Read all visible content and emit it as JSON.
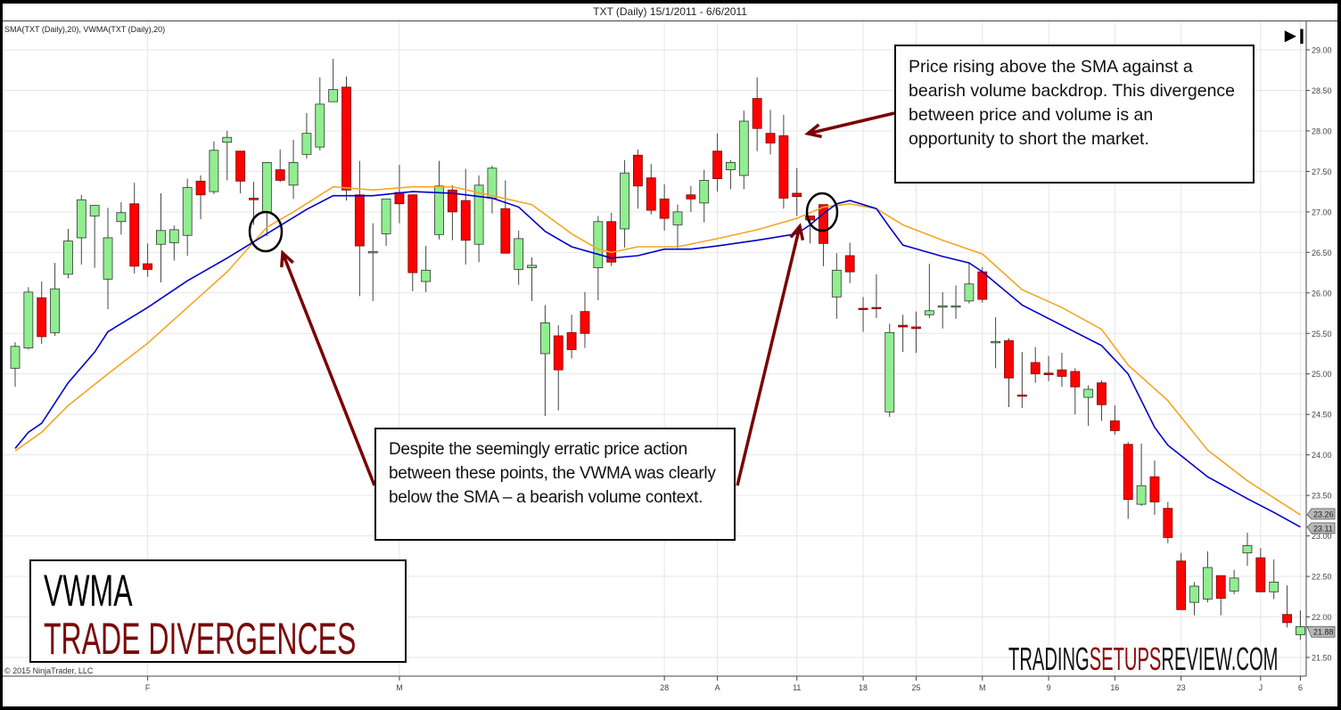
{
  "header": {
    "title": "TXT (Daily)  15/1/2011 - 6/6/2011",
    "indicator_label": "SMA(TXT (Daily),20), VWMA(TXT (Daily),20)",
    "skip_icon": "skip-to-end-icon"
  },
  "copyright": "© 2015 NinjaTrader, LLC",
  "annotations": {
    "note1": "Price rising above the SMA against a bearish volume backdrop. This divergence between price and volume is an opportunity to short the market.",
    "note2": "Despite the seemingly erratic price action between these points, the VWMA was clearly below the SMA – a bearish volume context."
  },
  "title_box": {
    "line1": "VWMA",
    "line2": "TRADE DIVERGENCES"
  },
  "logo": {
    "part1": "TRADING",
    "part2": "SETUPS",
    "part3": "REVIEW.COM"
  },
  "colors": {
    "up": "#90ee90",
    "down": "#ff0000",
    "sma": "#f5a623",
    "vwma": "#0000cc",
    "arrow": "#7a0000",
    "grid": "#e6e6e6"
  },
  "chart_data": {
    "type": "candlestick",
    "title": "TXT (Daily)  15/1/2011 - 6/6/2011",
    "ylim": [
      21.4,
      29.2
    ],
    "yticks": [
      "29.00",
      "28.50",
      "28.00",
      "27.50",
      "27.00",
      "26.50",
      "26.00",
      "25.50",
      "25.00",
      "24.50",
      "24.00",
      "23.50",
      "23.00",
      "22.50",
      "22.00",
      "21.50"
    ],
    "xticks": [
      {
        "label": "F",
        "bar": 10
      },
      {
        "label": "M",
        "bar": 29
      },
      {
        "label": "28",
        "bar": 49
      },
      {
        "label": "A",
        "bar": 53
      },
      {
        "label": "11",
        "bar": 59
      },
      {
        "label": "18",
        "bar": 64
      },
      {
        "label": "25",
        "bar": 68
      },
      {
        "label": "M",
        "bar": 73
      },
      {
        "label": "9",
        "bar": 78
      },
      {
        "label": "16",
        "bar": 83
      },
      {
        "label": "23",
        "bar": 88
      },
      {
        "label": "J",
        "bar": 94
      },
      {
        "label": "6",
        "bar": 97
      }
    ],
    "ohlc": [
      [
        25.07,
        25.39,
        24.84,
        25.34
      ],
      [
        25.32,
        26.07,
        25.3,
        26.01
      ],
      [
        25.94,
        26.14,
        25.37,
        25.46
      ],
      [
        25.51,
        26.37,
        25.47,
        26.05
      ],
      [
        26.23,
        26.79,
        26.18,
        26.64
      ],
      [
        26.68,
        27.21,
        26.35,
        27.15
      ],
      [
        26.95,
        27.08,
        26.31,
        27.08
      ],
      [
        26.17,
        27.05,
        25.8,
        26.68
      ],
      [
        26.88,
        27.12,
        26.72,
        26.99
      ],
      [
        27.1,
        27.36,
        26.24,
        26.33
      ],
      [
        26.36,
        26.61,
        26.2,
        26.29
      ],
      [
        26.6,
        27.23,
        26.13,
        26.77
      ],
      [
        26.62,
        26.83,
        26.4,
        26.78
      ],
      [
        26.71,
        27.41,
        26.46,
        27.3
      ],
      [
        27.38,
        27.45,
        26.91,
        27.21
      ],
      [
        27.25,
        27.87,
        27.22,
        27.76
      ],
      [
        27.86,
        28.0,
        27.39,
        27.92
      ],
      [
        27.75,
        27.75,
        27.23,
        27.38
      ],
      [
        27.17,
        27.37,
        26.84,
        27.15
      ],
      [
        27.0,
        27.61,
        26.7,
        27.61
      ],
      [
        27.52,
        27.77,
        27.37,
        27.39
      ],
      [
        27.33,
        27.89,
        27.16,
        27.61
      ],
      [
        27.71,
        28.22,
        27.66,
        27.97
      ],
      [
        27.8,
        28.66,
        27.76,
        28.33
      ],
      [
        28.36,
        28.89,
        28.36,
        28.51
      ],
      [
        28.54,
        28.67,
        27.14,
        27.27
      ],
      [
        27.21,
        27.63,
        25.96,
        26.58
      ],
      [
        26.51,
        26.86,
        25.9,
        26.51
      ],
      [
        26.73,
        27.16,
        26.58,
        27.16
      ],
      [
        27.24,
        27.58,
        26.86,
        27.1
      ],
      [
        27.21,
        27.21,
        26.02,
        26.25
      ],
      [
        26.14,
        26.58,
        26.01,
        26.28
      ],
      [
        26.72,
        27.63,
        26.66,
        27.32
      ],
      [
        27.27,
        27.33,
        26.65,
        27.0
      ],
      [
        27.14,
        27.53,
        26.35,
        26.65
      ],
      [
        26.6,
        27.45,
        26.38,
        27.33
      ],
      [
        27.17,
        27.57,
        26.98,
        27.54
      ],
      [
        27.04,
        27.39,
        26.49,
        26.49
      ],
      [
        26.29,
        26.77,
        26.1,
        26.67
      ],
      [
        26.31,
        26.44,
        25.9,
        26.34
      ],
      [
        25.25,
        25.85,
        24.48,
        25.63
      ],
      [
        25.47,
        25.6,
        24.55,
        25.05
      ],
      [
        25.51,
        25.73,
        25.19,
        25.3
      ],
      [
        25.77,
        26.01,
        25.32,
        25.5
      ],
      [
        26.31,
        26.95,
        25.91,
        26.88
      ],
      [
        26.88,
        26.99,
        26.33,
        26.38
      ],
      [
        26.79,
        27.64,
        26.56,
        27.48
      ],
      [
        27.7,
        27.77,
        27.04,
        27.32
      ],
      [
        27.42,
        27.59,
        26.97,
        27.02
      ],
      [
        27.16,
        27.34,
        26.77,
        26.92
      ],
      [
        26.84,
        27.09,
        26.55,
        27.0
      ],
      [
        27.21,
        27.32,
        27.0,
        27.16
      ],
      [
        27.11,
        27.52,
        26.87,
        27.39
      ],
      [
        27.75,
        27.97,
        27.25,
        27.41
      ],
      [
        27.52,
        27.64,
        27.28,
        27.61
      ],
      [
        27.45,
        28.25,
        27.28,
        28.12
      ],
      [
        28.4,
        28.66,
        27.75,
        28.03
      ],
      [
        27.97,
        28.26,
        27.71,
        27.85
      ],
      [
        27.94,
        28.2,
        27.04,
        27.17
      ],
      [
        27.23,
        27.54,
        26.95,
        27.19
      ],
      [
        26.95,
        26.95,
        26.61,
        26.9
      ],
      [
        27.09,
        27.09,
        26.33,
        26.61
      ],
      [
        25.95,
        26.49,
        25.68,
        26.28
      ],
      [
        26.46,
        26.62,
        26.12,
        26.26
      ],
      [
        25.81,
        25.95,
        25.52,
        25.8
      ],
      [
        25.82,
        26.23,
        25.69,
        25.81
      ],
      [
        24.53,
        25.62,
        24.47,
        25.51
      ],
      [
        25.6,
        25.73,
        25.27,
        25.58
      ],
      [
        25.58,
        25.77,
        25.26,
        25.56
      ],
      [
        25.73,
        26.36,
        25.69,
        25.78
      ],
      [
        25.84,
        26.01,
        25.56,
        25.84
      ],
      [
        25.84,
        26.09,
        25.68,
        25.84
      ],
      [
        25.9,
        26.38,
        25.87,
        26.11
      ],
      [
        26.26,
        26.32,
        25.88,
        25.92
      ],
      [
        25.4,
        25.7,
        25.07,
        25.4
      ],
      [
        25.41,
        25.44,
        24.59,
        24.95
      ],
      [
        24.74,
        25.27,
        24.58,
        24.73
      ],
      [
        25.14,
        25.33,
        24.89,
        25.0
      ],
      [
        25.01,
        25.22,
        24.91,
        24.99
      ],
      [
        25.05,
        25.26,
        24.84,
        24.97
      ],
      [
        25.03,
        25.07,
        24.5,
        24.84
      ],
      [
        24.71,
        24.86,
        24.36,
        24.81
      ],
      [
        24.89,
        24.92,
        24.42,
        24.62
      ],
      [
        24.42,
        24.61,
        24.25,
        24.3
      ],
      [
        24.13,
        24.16,
        23.21,
        23.45
      ],
      [
        23.39,
        24.14,
        23.37,
        23.62
      ],
      [
        23.73,
        23.93,
        23.26,
        23.42
      ],
      [
        23.34,
        23.42,
        22.91,
        22.98
      ],
      [
        22.69,
        22.79,
        22.09,
        22.09
      ],
      [
        22.18,
        22.43,
        22.02,
        22.38
      ],
      [
        22.22,
        22.81,
        22.18,
        22.61
      ],
      [
        22.51,
        22.51,
        22.02,
        22.23
      ],
      [
        22.32,
        22.58,
        22.28,
        22.48
      ],
      [
        22.79,
        23.04,
        22.63,
        22.88
      ],
      [
        22.73,
        22.85,
        22.31,
        22.31
      ],
      [
        22.31,
        22.71,
        22.22,
        22.43
      ],
      [
        22.03,
        22.39,
        21.87,
        21.93
      ],
      [
        21.78,
        22.08,
        21.72,
        21.88
      ]
    ],
    "series": [
      {
        "name": "SMA(TXT (Daily),20)",
        "points": [
          [
            0,
            24.05
          ],
          [
            2,
            24.28
          ],
          [
            4,
            24.61
          ],
          [
            7,
            25.0
          ],
          [
            10,
            25.38
          ],
          [
            13,
            25.82
          ],
          [
            16,
            26.26
          ],
          [
            19,
            26.81
          ],
          [
            21,
            27.0
          ],
          [
            24,
            27.31
          ],
          [
            27,
            27.27
          ],
          [
            30,
            27.31
          ],
          [
            33,
            27.31
          ],
          [
            36,
            27.2
          ],
          [
            39,
            27.09
          ],
          [
            42,
            26.73
          ],
          [
            44,
            26.54
          ],
          [
            45,
            26.5
          ],
          [
            47,
            26.57
          ],
          [
            50,
            26.57
          ],
          [
            53,
            26.67
          ],
          [
            56,
            26.78
          ],
          [
            59,
            26.92
          ],
          [
            61,
            27.06
          ],
          [
            63,
            27.1
          ],
          [
            65,
            27.04
          ],
          [
            67,
            26.84
          ],
          [
            70,
            26.65
          ],
          [
            73,
            26.48
          ],
          [
            76,
            26.04
          ],
          [
            79,
            25.82
          ],
          [
            82,
            25.55
          ],
          [
            84,
            25.11
          ],
          [
            87,
            24.67
          ],
          [
            90,
            24.06
          ],
          [
            93,
            23.68
          ],
          [
            97,
            23.26
          ]
        ]
      },
      {
        "name": "VWMA(TXT (Daily),20)",
        "points": [
          [
            0,
            24.08
          ],
          [
            1,
            24.28
          ],
          [
            2,
            24.39
          ],
          [
            4,
            24.89
          ],
          [
            6,
            25.27
          ],
          [
            7,
            25.52
          ],
          [
            10,
            25.82
          ],
          [
            12,
            26.04
          ],
          [
            13,
            26.15
          ],
          [
            16,
            26.43
          ],
          [
            19,
            26.73
          ],
          [
            22,
            27.03
          ],
          [
            24,
            27.2
          ],
          [
            27,
            27.2
          ],
          [
            30,
            27.25
          ],
          [
            33,
            27.23
          ],
          [
            36,
            27.17
          ],
          [
            38,
            27.06
          ],
          [
            40,
            26.76
          ],
          [
            42,
            26.57
          ],
          [
            45,
            26.43
          ],
          [
            47,
            26.46
          ],
          [
            49,
            26.54
          ],
          [
            51,
            26.54
          ],
          [
            53,
            26.58
          ],
          [
            56,
            26.65
          ],
          [
            59,
            26.73
          ],
          [
            60,
            26.84
          ],
          [
            61,
            26.98
          ],
          [
            62,
            27.1
          ],
          [
            63,
            27.14
          ],
          [
            65,
            27.04
          ],
          [
            66,
            26.81
          ],
          [
            67,
            26.59
          ],
          [
            70,
            26.45
          ],
          [
            72,
            26.37
          ],
          [
            73,
            26.26
          ],
          [
            76,
            25.85
          ],
          [
            79,
            25.6
          ],
          [
            82,
            25.35
          ],
          [
            84,
            25.0
          ],
          [
            86,
            24.34
          ],
          [
            87,
            24.12
          ],
          [
            90,
            23.73
          ],
          [
            93,
            23.46
          ],
          [
            95,
            23.29
          ],
          [
            97,
            23.11
          ]
        ]
      }
    ],
    "last_value_tags": [
      {
        "series": "SMA",
        "value": "23.26"
      },
      {
        "series": "VWMA",
        "value": "23.11"
      },
      {
        "series": "Close",
        "value": "21.88"
      }
    ],
    "grid": true
  }
}
